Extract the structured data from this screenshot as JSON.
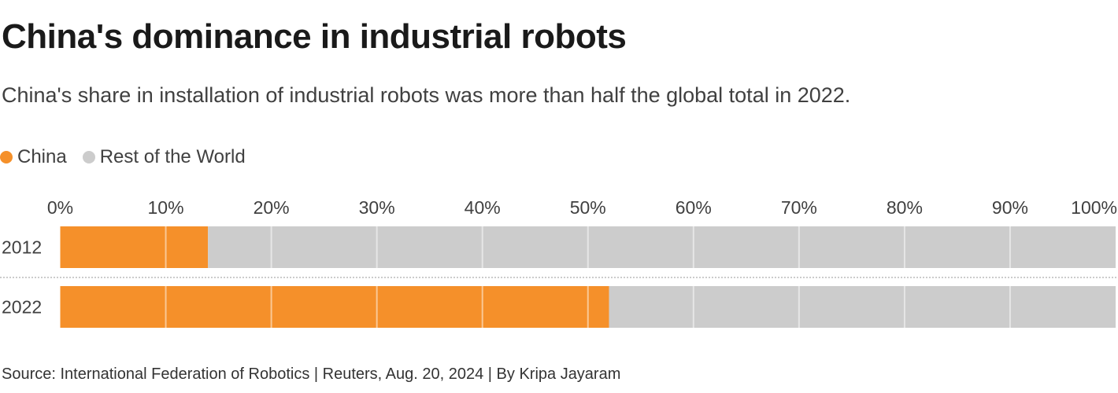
{
  "title": "China's dominance in industrial robots",
  "subtitle": "China's share in installation of industrial robots was more than half the global total in 2022.",
  "source": "Source: International Federation of Robotics | Reuters, Aug. 20, 2024 | By Kripa Jayaram",
  "colors": {
    "china": "#f5902a",
    "rest": "#cccccc"
  },
  "chart_data": {
    "type": "bar",
    "orientation": "horizontal",
    "stacked": true,
    "categories": [
      "2012",
      "2022"
    ],
    "series": [
      {
        "name": "China",
        "values": [
          14,
          52
        ]
      },
      {
        "name": "Rest of the World",
        "values": [
          86,
          48
        ]
      }
    ],
    "xlim": [
      0,
      100
    ],
    "ticks": [
      "0%",
      "10%",
      "20%",
      "30%",
      "40%",
      "50%",
      "60%",
      "70%",
      "80%",
      "90%",
      "100%"
    ],
    "tick_values": [
      0,
      10,
      20,
      30,
      40,
      50,
      60,
      70,
      80,
      90,
      100
    ],
    "legend_position": "top-left",
    "grid": true
  }
}
